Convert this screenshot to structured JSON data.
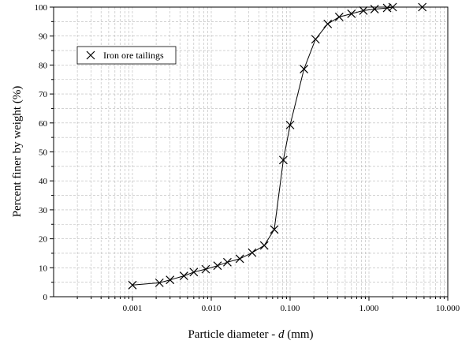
{
  "chart_data": {
    "type": "scatter",
    "xlabel_prefix": "Particle diameter - ",
    "xlabel_var": "d",
    "xlabel_suffix": " (mm)",
    "ylabel": "Percent finer by weight (%)",
    "x_scale": "log",
    "xlim": [
      0.0001,
      10
    ],
    "ylim": [
      0,
      100
    ],
    "grid": true,
    "legend_position": "top-left",
    "x_tick_labels": [
      "0.001",
      "0.010",
      "0.100",
      "1.000",
      "10.000"
    ],
    "x_tick_values": [
      0.001,
      0.01,
      0.1,
      1,
      10
    ],
    "y_tick_labels": [
      "0",
      "10",
      "20",
      "30",
      "40",
      "50",
      "60",
      "70",
      "80",
      "90",
      "100"
    ],
    "y_tick_values": [
      0,
      10,
      20,
      30,
      40,
      50,
      60,
      70,
      80,
      90,
      100
    ],
    "series": [
      {
        "name": "Iron ore tailings",
        "marker": "x",
        "color": "#000000",
        "x": [
          0.001,
          0.0022,
          0.003,
          0.0045,
          0.006,
          0.0085,
          0.012,
          0.016,
          0.023,
          0.033,
          0.047,
          0.063,
          0.082,
          0.1,
          0.15,
          0.21,
          0.3,
          0.42,
          0.6,
          0.85,
          1.18,
          1.7,
          2.0,
          4.75
        ],
        "y": [
          4.0,
          4.8,
          5.8,
          7.2,
          8.5,
          9.5,
          10.7,
          11.9,
          13.1,
          15.2,
          17.7,
          23.2,
          47.2,
          59.3,
          78.6,
          88.9,
          94.2,
          96.6,
          97.7,
          98.8,
          99.3,
          99.7,
          100.0,
          100.0
        ]
      }
    ]
  }
}
